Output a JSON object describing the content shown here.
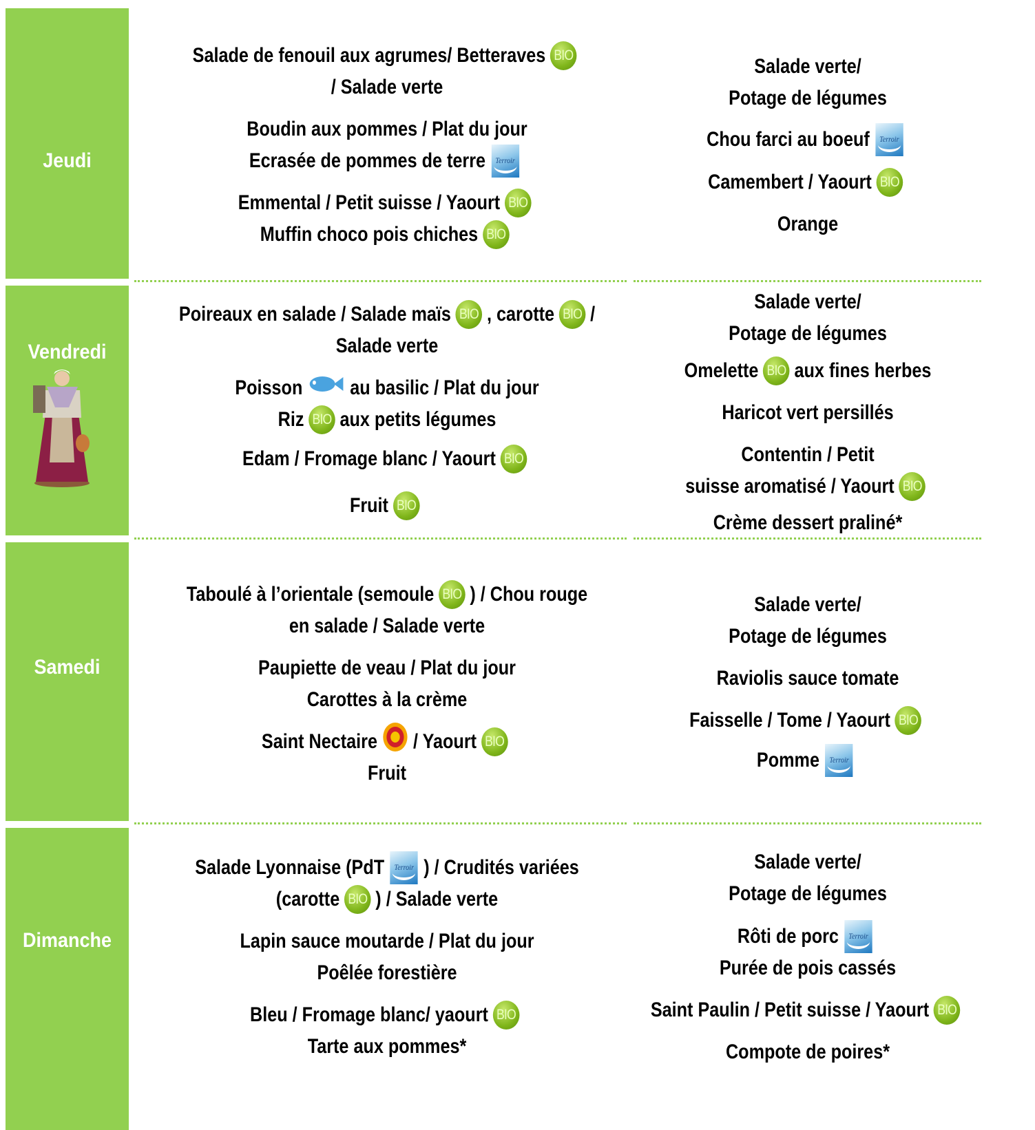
{
  "badges": {
    "bio": "BIO",
    "terroir": "Terroir"
  },
  "days": [
    {
      "day": "Jeudi",
      "lunch": [
        [
          "Salade de fenouil aux agrumes/ Betteraves"
        ],
        [
          "/ Salade verte"
        ],
        [
          "Boudin aux pommes  / Plat du jour"
        ],
        [
          "Ecrasée de pommes de terre"
        ],
        [
          "Emmental / Petit suisse / Yaourt"
        ],
        [
          "Muffin choco pois chiches"
        ]
      ],
      "dinner": [
        [
          "Salade verte/"
        ],
        [
          "Potage de légumes"
        ],
        [
          "Chou farci au boeuf"
        ],
        [
          "Camembert / Yaourt"
        ],
        [
          "Orange"
        ]
      ]
    },
    {
      "day": "Vendredi",
      "lunch": [
        [
          "Poireaux en salade / Salade maïs",
          ", carotte",
          "/"
        ],
        [
          "Salade verte"
        ],
        [
          "Poisson",
          "au basilic / Plat du jour"
        ],
        [
          "Riz",
          "aux petits légumes"
        ],
        [
          "Edam / Fromage blanc / Yaourt"
        ],
        [
          "Fruit"
        ]
      ],
      "dinner": [
        [
          "Salade verte/"
        ],
        [
          "Potage de légumes"
        ],
        [
          "Omelette",
          "aux fines herbes"
        ],
        [
          "Haricot vert persillés"
        ],
        [
          "Contentin / Petit"
        ],
        [
          "suisse aromatisé / Yaourt"
        ],
        [
          "Crème dessert praliné*"
        ]
      ]
    },
    {
      "day": "Samedi",
      "lunch": [
        [
          "Taboulé à l’orientale (semoule",
          ") / Chou rouge"
        ],
        [
          "en salade  / Salade verte"
        ],
        [
          "Paupiette de veau / Plat du jour"
        ],
        [
          "Carottes à la crème"
        ],
        [
          "Saint Nectaire",
          "/ Yaourt"
        ],
        [
          "Fruit"
        ]
      ],
      "dinner": [
        [
          "Salade verte/"
        ],
        [
          "Potage de légumes"
        ],
        [
          "Raviolis sauce tomate"
        ],
        [
          "Faisselle / Tome / Yaourt"
        ],
        [
          "Pomme"
        ]
      ]
    },
    {
      "day": "Dimanche",
      "lunch": [
        [
          "Salade Lyonnaise (PdT",
          ") / Crudités variées"
        ],
        [
          "(carotte",
          ")  /  Salade verte"
        ],
        [
          "Lapin sauce moutarde / Plat du jour"
        ],
        [
          "Poêlée forestière"
        ],
        [
          "Bleu / Fromage blanc/ yaourt"
        ],
        [
          "Tarte aux pommes*"
        ]
      ],
      "dinner": [
        [
          "Salade verte/"
        ],
        [
          "Potage de légumes"
        ],
        [
          "Rôti de porc"
        ],
        [
          "Purée de pois cassés"
        ],
        [
          "Saint Paulin / Petit suisse / Yaourt"
        ],
        [
          "Compote de poires*"
        ]
      ]
    }
  ]
}
